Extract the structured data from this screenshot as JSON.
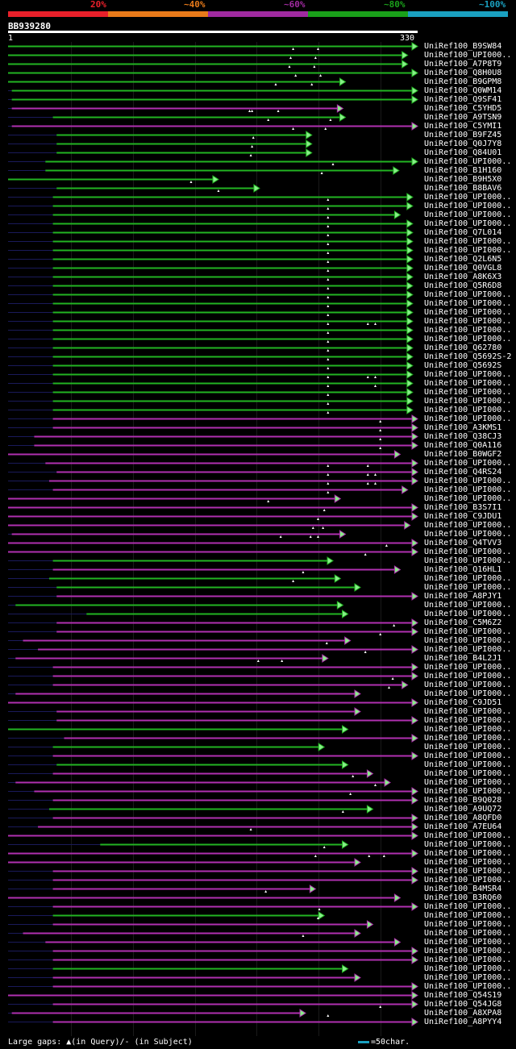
{
  "legend": {
    "labels": [
      "20%",
      "~40%",
      "~60%",
      "~80%",
      "~100%"
    ],
    "colors": [
      "#e8202a",
      "#e87a1a",
      "#a02aa0",
      "#1aa01a",
      "#1aa0c0"
    ]
  },
  "query": {
    "name": "BB939280",
    "start": "1",
    "end": "330",
    "length": 330
  },
  "footer": {
    "gaps": "Large gaps: ▲(in Query)/- (in Subject)",
    "scale": "=50char."
  },
  "hits": [
    {
      "name": "UniRef100_B9SW84",
      "s": 1,
      "e": 330,
      "c": "green",
      "m": [
        230,
        250
      ]
    },
    {
      "name": "UniRef100_UPI000..",
      "s": 1,
      "e": 322,
      "c": "green",
      "m": [
        228,
        248
      ]
    },
    {
      "name": "UniRef100_A7P8T9",
      "s": 1,
      "e": 322,
      "c": "green",
      "m": [
        227,
        247
      ]
    },
    {
      "name": "UniRef100_Q8H0U8",
      "s": 1,
      "e": 330,
      "c": "green",
      "m": [
        232,
        252
      ]
    },
    {
      "name": "UniRef100_B9GPM8",
      "s": 1,
      "e": 272,
      "c": "green",
      "m": [
        216,
        245
      ]
    },
    {
      "name": "UniRef100_Q0WM14",
      "s": 4,
      "e": 330,
      "c": "green",
      "m": []
    },
    {
      "name": "UniRef100_Q9SF41",
      "s": 4,
      "e": 330,
      "c": "green",
      "m": []
    },
    {
      "name": "UniRef100_C5YHD5",
      "s": 4,
      "e": 270,
      "c": "purple",
      "m": [
        195,
        197,
        218
      ]
    },
    {
      "name": "UniRef100_A9TSN9",
      "s": 37,
      "e": 272,
      "c": "green",
      "m": [
        210,
        260
      ]
    },
    {
      "name": "UniRef100_C5YMI1",
      "s": 4,
      "e": 330,
      "c": "purple",
      "m": [
        230,
        256
      ]
    },
    {
      "name": "UniRef100_B9FZ45",
      "s": 40,
      "e": 245,
      "c": "green",
      "m": [
        198
      ]
    },
    {
      "name": "UniRef100_Q0J7Y8",
      "s": 40,
      "e": 245,
      "c": "green",
      "m": [
        197
      ]
    },
    {
      "name": "UniRef100_Q84U01",
      "s": 40,
      "e": 245,
      "c": "green",
      "m": [
        196
      ]
    },
    {
      "name": "UniRef100_UPI000..",
      "s": 31,
      "e": 330,
      "c": "green",
      "m": [
        262
      ]
    },
    {
      "name": "UniRef100_B1H160",
      "s": 31,
      "e": 315,
      "c": "green",
      "m": [
        253
      ]
    },
    {
      "name": "UniRef100_B9H5X0",
      "s": 1,
      "e": 170,
      "c": "green",
      "m": [
        148
      ]
    },
    {
      "name": "UniRef100_B8BAV6",
      "s": 40,
      "e": 203,
      "c": "green",
      "m": [
        170
      ]
    },
    {
      "name": "UniRef100_UPI000..",
      "s": 37,
      "e": 326,
      "c": "green",
      "m": [
        258
      ]
    },
    {
      "name": "UniRef100_UPI000..",
      "s": 37,
      "e": 326,
      "c": "green",
      "m": [
        258
      ]
    },
    {
      "name": "UniRef100_UPI000..",
      "s": 37,
      "e": 316,
      "c": "green",
      "m": [
        258
      ]
    },
    {
      "name": "UniRef100_UPI000..",
      "s": 37,
      "e": 326,
      "c": "green",
      "m": [
        258
      ]
    },
    {
      "name": "UniRef100_Q7L014",
      "s": 37,
      "e": 326,
      "c": "green",
      "m": [
        258
      ]
    },
    {
      "name": "UniRef100_UPI000..",
      "s": 37,
      "e": 326,
      "c": "green",
      "m": [
        258
      ]
    },
    {
      "name": "UniRef100_UPI000..",
      "s": 37,
      "e": 326,
      "c": "green",
      "m": [
        258
      ]
    },
    {
      "name": "UniRef100_Q2L6N5",
      "s": 37,
      "e": 326,
      "c": "green",
      "m": [
        258
      ]
    },
    {
      "name": "UniRef100_Q0VGL8",
      "s": 37,
      "e": 326,
      "c": "green",
      "m": [
        258
      ]
    },
    {
      "name": "UniRef100_A8K6X3",
      "s": 37,
      "e": 326,
      "c": "green",
      "m": [
        258
      ]
    },
    {
      "name": "UniRef100_Q5R6D8",
      "s": 37,
      "e": 326,
      "c": "green",
      "m": [
        258
      ]
    },
    {
      "name": "UniRef100_UPI000..",
      "s": 37,
      "e": 326,
      "c": "green",
      "m": [
        258
      ]
    },
    {
      "name": "UniRef100_UPI000..",
      "s": 37,
      "e": 326,
      "c": "green",
      "m": [
        258
      ]
    },
    {
      "name": "UniRef100_UPI000..",
      "s": 37,
      "e": 326,
      "c": "green",
      "m": [
        258
      ]
    },
    {
      "name": "UniRef100_UPI000..",
      "s": 37,
      "e": 326,
      "c": "green",
      "m": [
        258,
        290,
        296
      ]
    },
    {
      "name": "UniRef100_UPI000..",
      "s": 37,
      "e": 326,
      "c": "green",
      "m": [
        258
      ]
    },
    {
      "name": "UniRef100_UPI000..",
      "s": 37,
      "e": 326,
      "c": "green",
      "m": [
        258
      ]
    },
    {
      "name": "UniRef100_Q62780",
      "s": 37,
      "e": 326,
      "c": "green",
      "m": [
        258
      ]
    },
    {
      "name": "UniRef100_Q5692S-2",
      "s": 37,
      "e": 326,
      "c": "green",
      "m": [
        258
      ]
    },
    {
      "name": "UniRef100_Q5692S",
      "s": 37,
      "e": 326,
      "c": "green",
      "m": [
        258
      ]
    },
    {
      "name": "UniRef100_UPI000..",
      "s": 37,
      "e": 326,
      "c": "green",
      "m": [
        258,
        290,
        296
      ]
    },
    {
      "name": "UniRef100_UPI000..",
      "s": 37,
      "e": 326,
      "c": "green",
      "m": [
        258,
        296
      ]
    },
    {
      "name": "UniRef100_UPI000..",
      "s": 37,
      "e": 326,
      "c": "green",
      "m": [
        258
      ]
    },
    {
      "name": "UniRef100_UPI000..",
      "s": 37,
      "e": 326,
      "c": "green",
      "m": [
        258
      ]
    },
    {
      "name": "UniRef100_UPI000..",
      "s": 37,
      "e": 326,
      "c": "green",
      "m": [
        258
      ]
    },
    {
      "name": "UniRef100_UPI000..",
      "s": 37,
      "e": 330,
      "c": "purple",
      "m": [
        300
      ]
    },
    {
      "name": "UniRef100_A3KMS1",
      "s": 37,
      "e": 330,
      "c": "purple",
      "m": [
        300
      ]
    },
    {
      "name": "UniRef100_Q38CJ3",
      "s": 22,
      "e": 330,
      "c": "purple",
      "m": [
        300
      ]
    },
    {
      "name": "UniRef100_Q0A116",
      "s": 22,
      "e": 330,
      "c": "purple",
      "m": [
        300
      ]
    },
    {
      "name": "UniRef100_B0WGF2",
      "s": 1,
      "e": 316,
      "c": "purple",
      "m": []
    },
    {
      "name": "UniRef100_UPI000..",
      "s": 31,
      "e": 330,
      "c": "purple",
      "m": [
        258,
        290
      ]
    },
    {
      "name": "UniRef100_Q4RS24",
      "s": 40,
      "e": 330,
      "c": "purple",
      "m": [
        258,
        290,
        296
      ]
    },
    {
      "name": "UniRef100_UPI000..",
      "s": 34,
      "e": 330,
      "c": "purple",
      "m": [
        258,
        290,
        296
      ]
    },
    {
      "name": "UniRef100_UPI000..",
      "s": 37,
      "e": 322,
      "c": "purple",
      "m": [
        258
      ]
    },
    {
      "name": "UniRef100_UPI000..",
      "s": 1,
      "e": 268,
      "c": "purple",
      "m": [
        210
      ]
    },
    {
      "name": "UniRef100_B3S7I1",
      "s": 1,
      "e": 330,
      "c": "purple",
      "m": [
        255
      ]
    },
    {
      "name": "UniRef100_C9JDU1",
      "s": 1,
      "e": 330,
      "c": "purple",
      "m": [
        250
      ]
    },
    {
      "name": "UniRef100_UPI000..",
      "s": 1,
      "e": 324,
      "c": "purple",
      "m": [
        246,
        254
      ]
    },
    {
      "name": "UniRef100_UPI000..",
      "s": 4,
      "e": 272,
      "c": "purple",
      "m": [
        220,
        244,
        250
      ]
    },
    {
      "name": "UniRef100_Q4TVV3",
      "s": 1,
      "e": 330,
      "c": "purple",
      "m": [
        305
      ]
    },
    {
      "name": "UniRef100_UPI000..",
      "s": 1,
      "e": 330,
      "c": "purple",
      "m": [
        288
      ]
    },
    {
      "name": "UniRef100_UPI000..",
      "s": 37,
      "e": 262,
      "c": "green",
      "m": []
    },
    {
      "name": "UniRef100_Q16HL1",
      "s": 37,
      "e": 316,
      "c": "purple",
      "m": [
        238
      ]
    },
    {
      "name": "UniRef100_UPI000..",
      "s": 34,
      "e": 268,
      "c": "green",
      "m": [
        230
      ]
    },
    {
      "name": "UniRef100_UPI000..",
      "s": 40,
      "e": 284,
      "c": "green",
      "m": []
    },
    {
      "name": "UniRef100_A8PJY1",
      "s": 40,
      "e": 330,
      "c": "purple",
      "m": []
    },
    {
      "name": "UniRef100_UPI000..",
      "s": 7,
      "e": 270,
      "c": "green",
      "m": []
    },
    {
      "name": "UniRef100_UPI000..",
      "s": 64,
      "e": 274,
      "c": "green",
      "m": []
    },
    {
      "name": "UniRef100_C5M6Z2",
      "s": 40,
      "e": 330,
      "c": "purple",
      "m": [
        311
      ]
    },
    {
      "name": "UniRef100_UPI000..",
      "s": 40,
      "e": 330,
      "c": "purple",
      "m": [
        300
      ]
    },
    {
      "name": "UniRef100_UPI000..",
      "s": 13,
      "e": 276,
      "c": "purple",
      "m": [
        257
      ]
    },
    {
      "name": "UniRef100_UPI000..",
      "s": 25,
      "e": 330,
      "c": "purple",
      "m": [
        288
      ]
    },
    {
      "name": "UniRef100_B4L2J1",
      "s": 7,
      "e": 258,
      "c": "purple",
      "m": [
        202,
        221
      ]
    },
    {
      "name": "UniRef100_UPI000..",
      "s": 37,
      "e": 330,
      "c": "purple",
      "m": []
    },
    {
      "name": "UniRef100_UPI000..",
      "s": 37,
      "e": 330,
      "c": "purple",
      "m": [
        310
      ]
    },
    {
      "name": "UniRef100_UPI000..",
      "s": 37,
      "e": 322,
      "c": "purple",
      "m": [
        307
      ]
    },
    {
      "name": "UniRef100_UPI000..",
      "s": 7,
      "e": 284,
      "c": "purple",
      "m": []
    },
    {
      "name": "UniRef100_C9JD51",
      "s": 1,
      "e": 330,
      "c": "purple",
      "m": []
    },
    {
      "name": "UniRef100_UPI000..",
      "s": 40,
      "e": 284,
      "c": "purple",
      "m": []
    },
    {
      "name": "UniRef100_UPI000..",
      "s": 40,
      "e": 330,
      "c": "purple",
      "m": []
    },
    {
      "name": "UniRef100_UPI000..",
      "s": 1,
      "e": 274,
      "c": "green",
      "m": []
    },
    {
      "name": "UniRef100_UPI000..",
      "s": 46,
      "e": 330,
      "c": "purple",
      "m": []
    },
    {
      "name": "UniRef100_UPI000..",
      "s": 37,
      "e": 255,
      "c": "green",
      "m": []
    },
    {
      "name": "UniRef100_UPI000..",
      "s": 37,
      "e": 330,
      "c": "purple",
      "m": []
    },
    {
      "name": "UniRef100_UPI000..",
      "s": 40,
      "e": 274,
      "c": "green",
      "m": []
    },
    {
      "name": "UniRef100_UPI000..",
      "s": 37,
      "e": 294,
      "c": "purple",
      "m": [
        278
      ]
    },
    {
      "name": "UniRef100_UPI000..",
      "s": 7,
      "e": 308,
      "c": "purple",
      "m": [
        296
      ]
    },
    {
      "name": "UniRef100_UPI000..",
      "s": 22,
      "e": 330,
      "c": "purple",
      "m": [
        276
      ]
    },
    {
      "name": "UniRef100_B9Q028",
      "s": 37,
      "e": 330,
      "c": "purple",
      "m": []
    },
    {
      "name": "UniRef100_A9UQ72",
      "s": 34,
      "e": 294,
      "c": "green",
      "m": [
        270
      ]
    },
    {
      "name": "UniRef100_A8QFD0",
      "s": 37,
      "e": 330,
      "c": "purple",
      "m": []
    },
    {
      "name": "UniRef100_A7EU64",
      "s": 25,
      "e": 330,
      "c": "purple",
      "m": [
        196
      ]
    },
    {
      "name": "UniRef100_UPI000..",
      "s": 1,
      "e": 330,
      "c": "purple",
      "m": []
    },
    {
      "name": "UniRef100_UPI000..",
      "s": 75,
      "e": 274,
      "c": "green",
      "m": [
        255
      ]
    },
    {
      "name": "UniRef100_UPI000..",
      "s": 1,
      "e": 330,
      "c": "purple",
      "m": [
        248,
        291,
        303
      ]
    },
    {
      "name": "UniRef100_UPI000..",
      "s": 1,
      "e": 284,
      "c": "purple",
      "m": []
    },
    {
      "name": "UniRef100_UPI000..",
      "s": 37,
      "e": 330,
      "c": "purple",
      "m": []
    },
    {
      "name": "UniRef100_UPI000..",
      "s": 37,
      "e": 330,
      "c": "purple",
      "m": []
    },
    {
      "name": "UniRef100_B4MSR4",
      "s": 37,
      "e": 248,
      "c": "purple",
      "m": [
        208
      ]
    },
    {
      "name": "UniRef100_B3RQ60",
      "s": 1,
      "e": 316,
      "c": "purple",
      "m": []
    },
    {
      "name": "UniRef100_UPI000..",
      "s": 37,
      "e": 330,
      "c": "purple",
      "m": [
        251
      ]
    },
    {
      "name": "UniRef100_UPI000..",
      "s": 37,
      "e": 255,
      "c": "green",
      "m": [
        250
      ]
    },
    {
      "name": "UniRef100_UPI000..",
      "s": 37,
      "e": 294,
      "c": "purple",
      "m": []
    },
    {
      "name": "UniRef100_UPI000..",
      "s": 13,
      "e": 284,
      "c": "purple",
      "m": [
        238
      ]
    },
    {
      "name": "UniRef100_UPI000..",
      "s": 31,
      "e": 316,
      "c": "purple",
      "m": []
    },
    {
      "name": "UniRef100_UPI000..",
      "s": 37,
      "e": 330,
      "c": "purple",
      "m": []
    },
    {
      "name": "UniRef100_UPI000..",
      "s": 37,
      "e": 330,
      "c": "purple",
      "m": []
    },
    {
      "name": "UniRef100_UPI000..",
      "s": 37,
      "e": 274,
      "c": "green",
      "m": []
    },
    {
      "name": "UniRef100_UPI000..",
      "s": 37,
      "e": 284,
      "c": "purple",
      "m": []
    },
    {
      "name": "UniRef100_UPI000..",
      "s": 37,
      "e": 330,
      "c": "purple",
      "m": []
    },
    {
      "name": "UniRef100_Q54S19",
      "s": 1,
      "e": 330,
      "c": "purple",
      "m": []
    },
    {
      "name": "UniRef100_Q54JG8",
      "s": 37,
      "e": 330,
      "c": "purple",
      "m": [
        300
      ]
    },
    {
      "name": "UniRef100_A8XPA8",
      "s": 4,
      "e": 240,
      "c": "purple",
      "m": [
        258
      ]
    },
    {
      "name": "UniRef100_A8PYY4",
      "s": 37,
      "e": 330,
      "c": "purple",
      "m": []
    }
  ]
}
